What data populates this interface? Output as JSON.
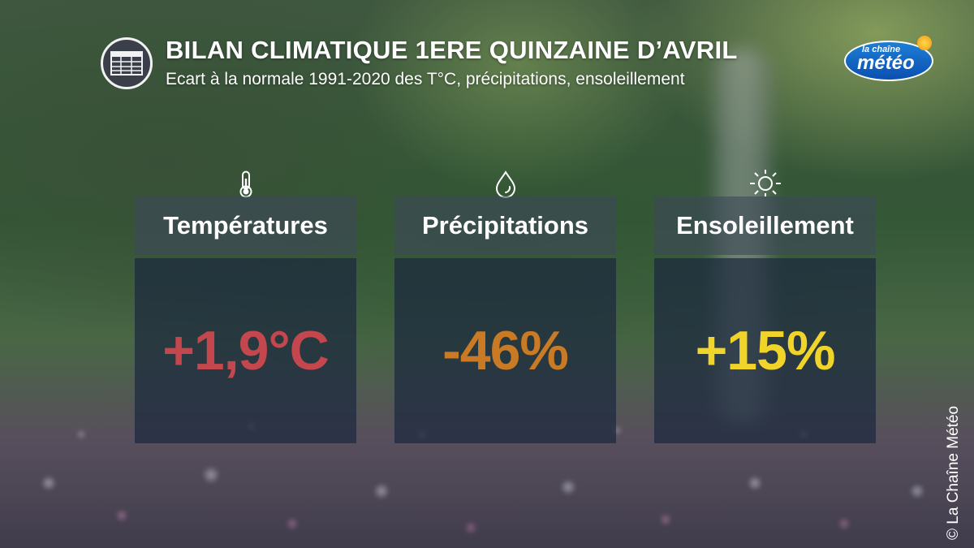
{
  "header": {
    "title": "BILAN CLIMATIQUE 1ERE QUINZAINE D’AVRIL",
    "subtitle": "Ecart à la normale 1991-2020 des T°C, précipitations, ensoleillement"
  },
  "logo": {
    "line1": "la chaîne",
    "line2": "météo"
  },
  "cards": [
    {
      "label": "Températures",
      "value": "+1,9°C",
      "icon": "thermometer-icon",
      "color": "#c3474d"
    },
    {
      "label": "Précipitations",
      "value": "-46%",
      "icon": "droplet-icon",
      "color": "#c87a24"
    },
    {
      "label": "Ensoleillement",
      "value": "+15%",
      "icon": "sun-icon",
      "color": "#f0d42a"
    }
  ],
  "copyright": "© La Chaîne Météo"
}
